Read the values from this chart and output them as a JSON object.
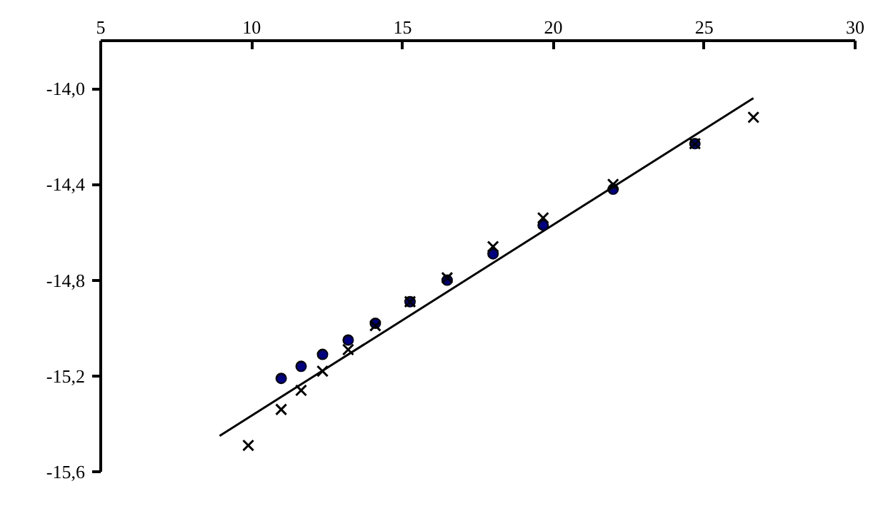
{
  "chart_data": {
    "type": "scatter",
    "xlim": [
      5,
      30
    ],
    "ylim": [
      -15.6,
      -13.8
    ],
    "xticks": [
      5,
      10,
      15,
      20,
      25,
      30
    ],
    "yticks": [
      {
        "value": -14.0,
        "label": "-14,0"
      },
      {
        "value": -14.4,
        "label": "-14,4"
      },
      {
        "value": -14.8,
        "label": "-14,8"
      },
      {
        "value": -15.2,
        "label": "-15,2"
      },
      {
        "value": -15.6,
        "label": "-15,6"
      }
    ],
    "grid": false,
    "series": [
      {
        "marker": "circle",
        "color": "#000080",
        "x": [
          10.98,
          11.64,
          12.35,
          13.2,
          14.1,
          15.25,
          16.48,
          18.0,
          19.66,
          21.98,
          24.69
        ],
        "values": [
          -15.21,
          -15.16,
          -15.11,
          -15.05,
          -14.98,
          -14.89,
          -14.8,
          -14.69,
          -14.57,
          -14.42,
          -14.23
        ]
      },
      {
        "marker": "cross",
        "color": "#000000",
        "x": [
          9.89,
          10.98,
          11.64,
          12.35,
          13.2,
          14.1,
          15.25,
          16.48,
          18.0,
          19.66,
          21.98,
          24.69,
          26.63
        ],
        "values": [
          -15.49,
          -15.34,
          -15.26,
          -15.18,
          -15.09,
          -14.99,
          -14.89,
          -14.79,
          -14.66,
          -14.54,
          -14.4,
          -14.23,
          -14.12
        ]
      },
      {
        "type": "line",
        "line_style": "solid",
        "color": "#000000",
        "x": [
          8.94,
          26.63
        ],
        "values": [
          -15.45,
          -14.04
        ]
      }
    ]
  }
}
